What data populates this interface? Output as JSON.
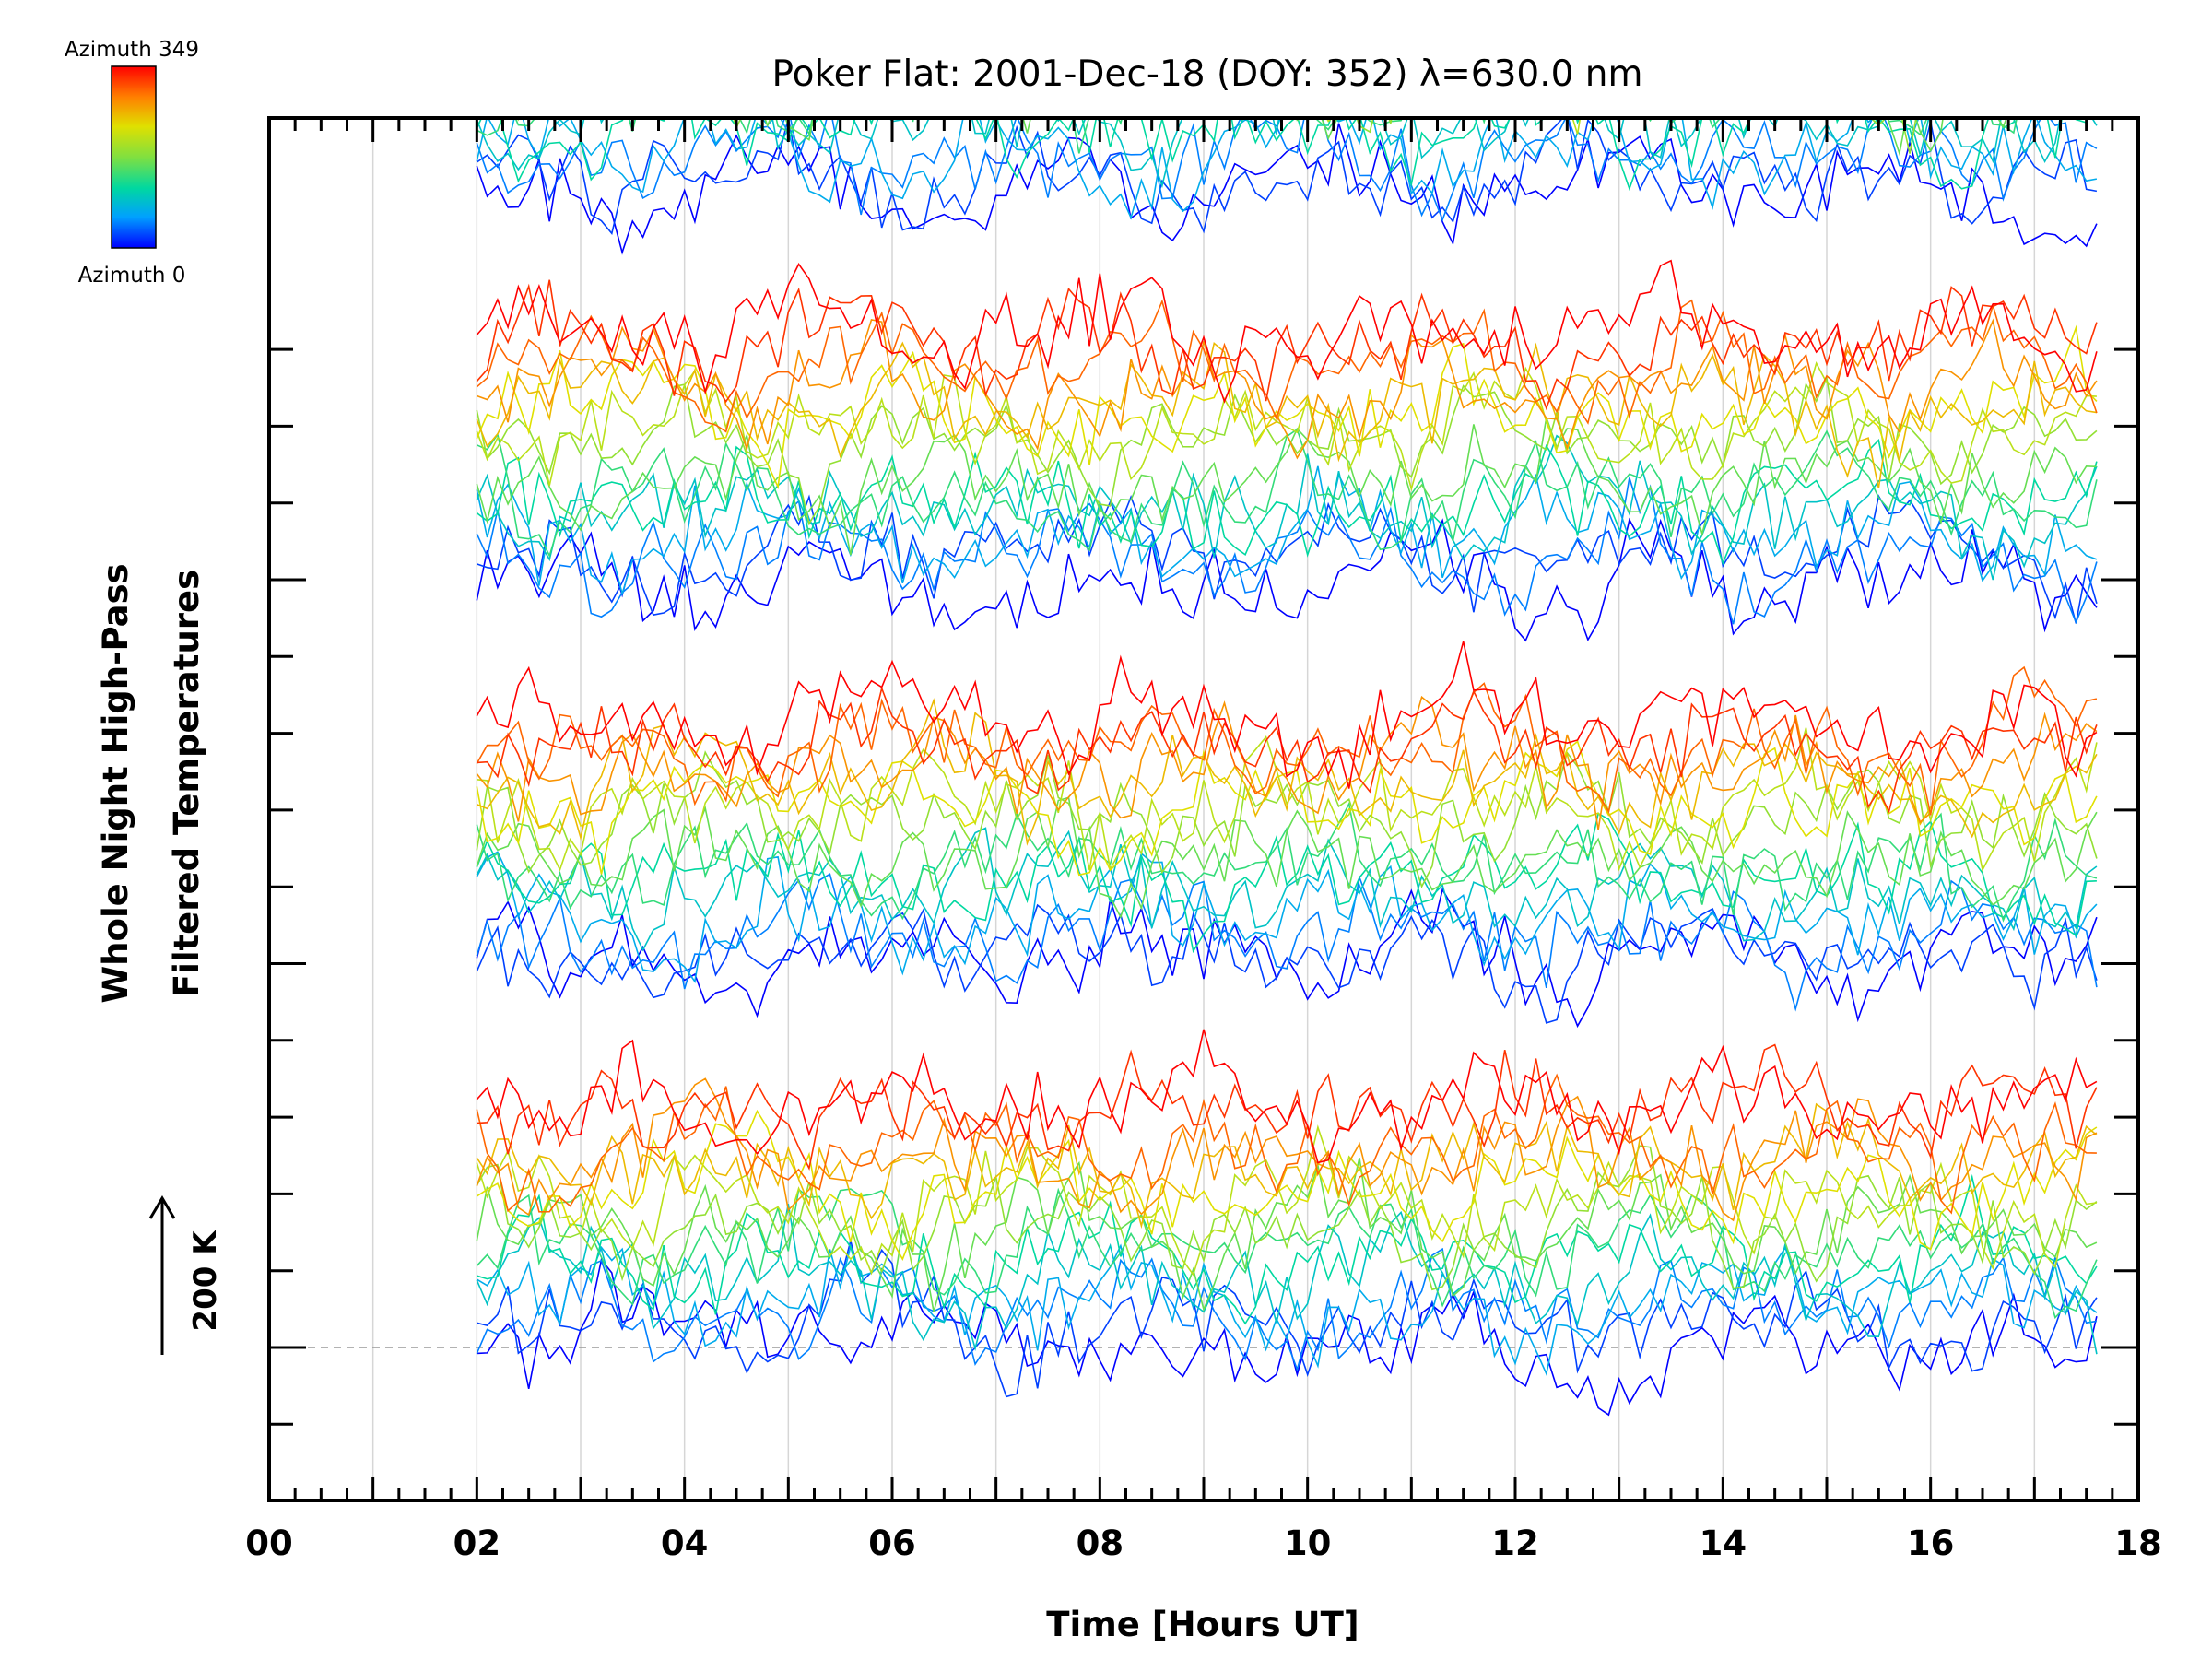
{
  "chart_data": {
    "type": "line",
    "title": "Poker Flat: 2001-Dec-18 (DOY: 352) λ=630.0 nm",
    "xlabel": "Time [Hours UT]",
    "ylabel_line1": "Whole Night High-Pass",
    "ylabel_line2": "Filtered Temperatures",
    "xlim": [
      0,
      18
    ],
    "x_tick_labels": [
      "00",
      "02",
      "04",
      "06",
      "08",
      "10",
      "12",
      "14",
      "16",
      "18"
    ],
    "x_tick_values": [
      0,
      2,
      4,
      6,
      8,
      10,
      12,
      14,
      16,
      18
    ],
    "vertical_grid_hours": [
      1,
      2,
      3,
      4,
      5,
      6,
      7,
      8,
      9,
      10,
      11,
      12,
      13,
      14,
      15,
      16,
      17
    ],
    "scale_bar_label": "200 K",
    "colorbar": {
      "top_label": "Azimuth 349",
      "bottom_label": "Azimuth 0",
      "colors": [
        "#0000ff",
        "#00a0ff",
        "#00d8a0",
        "#80e040",
        "#e0e000",
        "#ff8000",
        "#ff0000"
      ]
    },
    "baseline_dashed": true,
    "data_start_hour": 2.0,
    "data_end_hour": 17.65,
    "time_step_hours": 0.1,
    "groups": [
      {
        "base_offset_K": 0,
        "traces": 16,
        "note": "traces stacked, azimuth 0 to 349"
      },
      {
        "base_offset_K": 500,
        "traces": 16
      },
      {
        "base_offset_K": 1000,
        "traces": 16
      },
      {
        "base_offset_K": 1500,
        "traces": 16
      }
    ]
  }
}
